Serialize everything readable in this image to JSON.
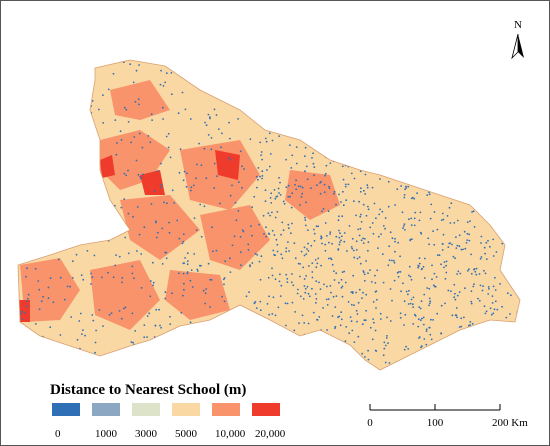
{
  "north_label": "N",
  "legend": {
    "title": "Distance to Nearest School (m)",
    "items": [
      {
        "label": "0",
        "color": "#2f6fb5"
      },
      {
        "label": "1000",
        "color": "#8ba7c2"
      },
      {
        "label": "3000",
        "color": "#dde3c8"
      },
      {
        "label": "5000",
        "color": "#fad8a4"
      },
      {
        "label": "10,000",
        "color": "#f8936b"
      },
      {
        "label": "20,000",
        "color": "#ef3b2c"
      }
    ]
  },
  "scale_bar": {
    "labels": [
      "0",
      "100",
      "200 Km"
    ]
  }
}
